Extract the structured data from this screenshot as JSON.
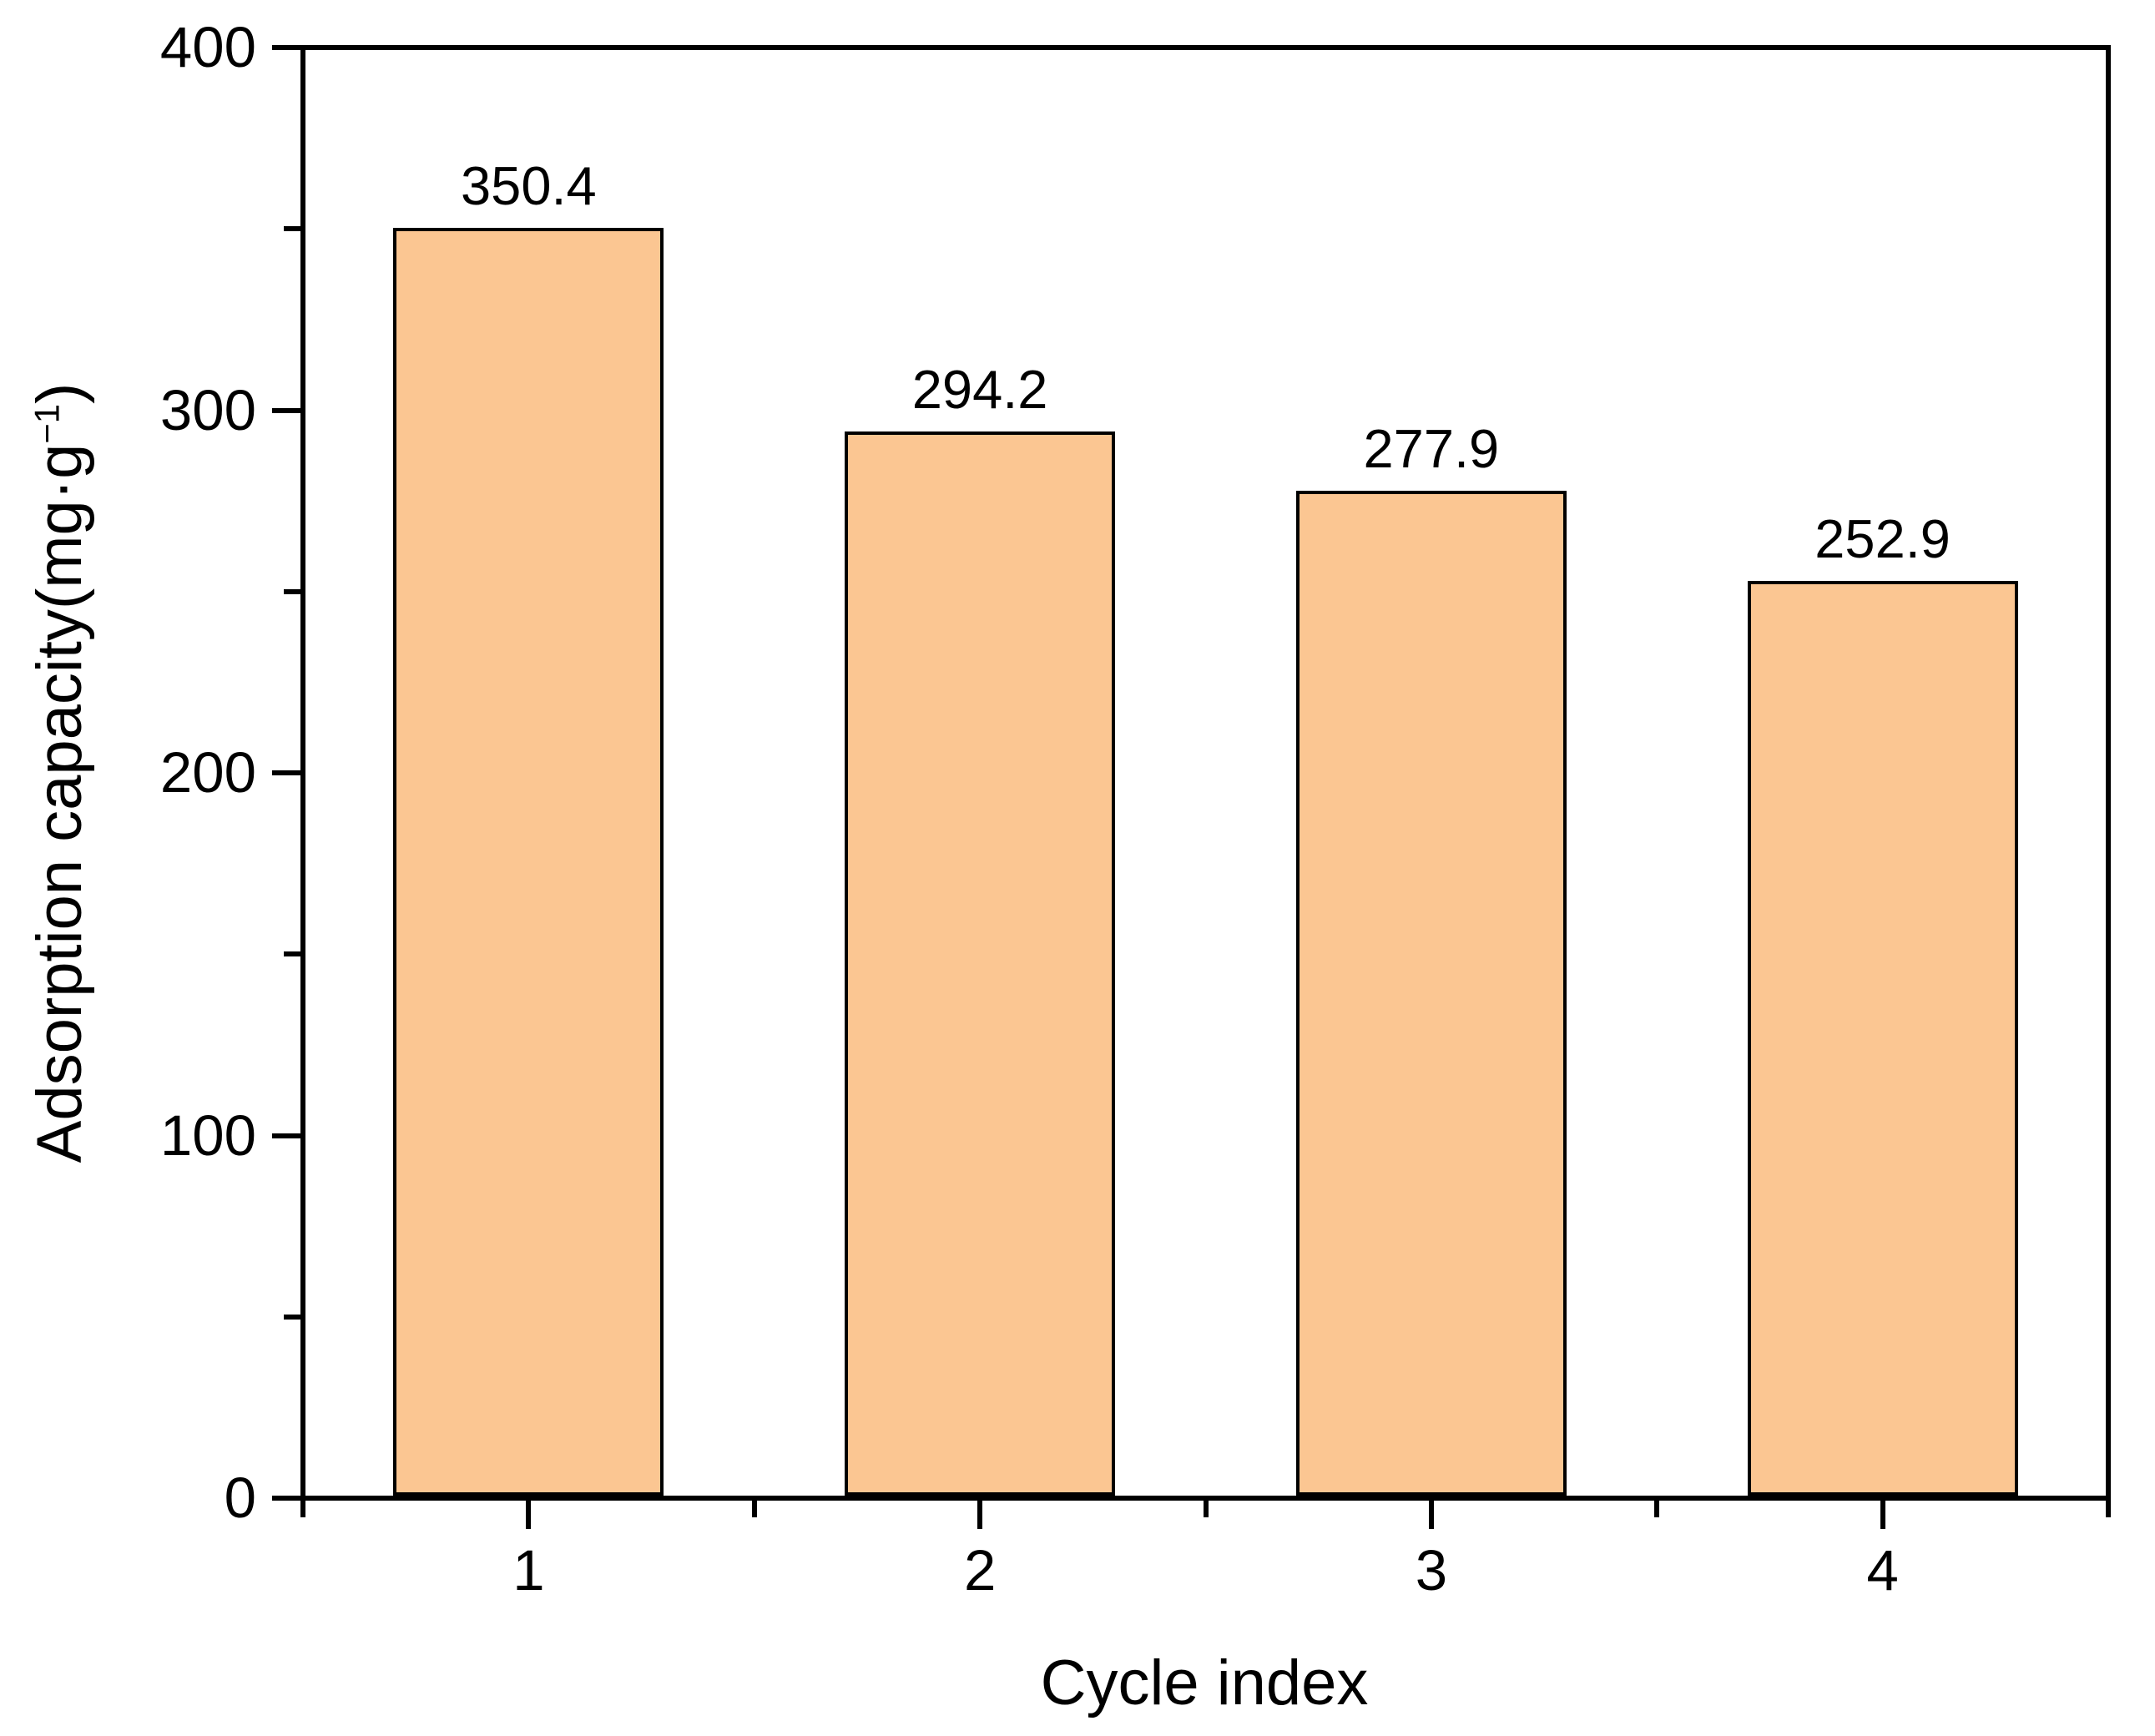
{
  "figure": {
    "background_color": "#ffffff",
    "text_color": "#000000",
    "axis_color": "#000000"
  },
  "chart_data": {
    "type": "bar",
    "title": "",
    "categories": [
      "1",
      "2",
      "3",
      "4"
    ],
    "values": [
      350.4,
      294.2,
      277.9,
      252.9
    ],
    "bar_labels": [
      "350.4",
      "294.2",
      "277.9",
      "252.9"
    ],
    "xlabel": "Cycle index",
    "ylabel_prefix": "Adsorption capacity(mg·g",
    "ylabel_sup": "−1",
    "ylabel_suffix": ")",
    "ylim": [
      0,
      400
    ],
    "y_major_ticks": [
      0,
      100,
      200,
      300,
      400
    ],
    "y_major_tick_labels": [
      "0",
      "100",
      "200",
      "300",
      "400"
    ],
    "y_minor_ticks": [
      50,
      150,
      250,
      350
    ],
    "grid": false,
    "legend": null,
    "bar_fill_color": "#FBC692",
    "bar_border_color": "#000000"
  }
}
